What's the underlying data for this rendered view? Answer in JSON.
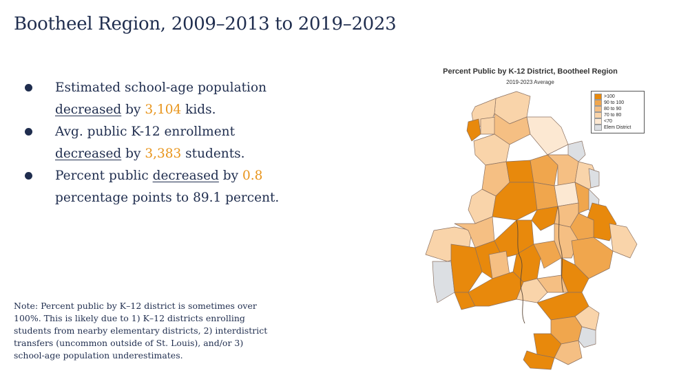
{
  "title": "Bootheel Region, 2009–2013 to 2019–2023",
  "bullets": [
    {
      "pre": "Estimated school-age population ",
      "underlined": "decreased",
      "mid": " by ",
      "highlight": "3,104",
      "post": " kids."
    },
    {
      "pre": "Avg. public K-12 enrollment ",
      "underlined": "decreased",
      "mid": " by ",
      "highlight": "3,383",
      "post": " students."
    },
    {
      "pre": "Percent public ",
      "underlined": "decreased",
      "mid": " by ",
      "highlight": "0.8",
      "post": " percentage points to 89.1 percent."
    }
  ],
  "note": "Note: Percent public by K–12 district is sometimes over 100%. This is likely due to 1) K–12 districts enrolling students from nearby elementary districts, 2) interdistrict transfers (uncommon outside of St. Louis), and/or 3) school-age population underestimates.",
  "map": {
    "title": "Percent Public by K-12 District, Bootheel Region",
    "subtitle": "2019-2023 Average",
    "legend": [
      {
        "label": ">100",
        "color": "#e8890c"
      },
      {
        "label": "90 to 100",
        "color": "#f0a64d"
      },
      {
        "label": "80 to 90",
        "color": "#f5bf83"
      },
      {
        "label": "70 to 80",
        "color": "#f9d4aa"
      },
      {
        "label": "<70",
        "color": "#fce8d2"
      },
      {
        "label": "Elem District",
        "color": "#dcdfe3"
      }
    ]
  }
}
